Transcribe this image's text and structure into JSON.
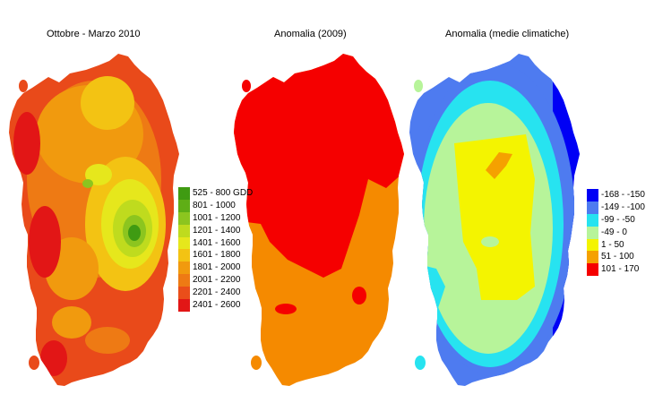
{
  "maps": [
    {
      "title": "Ottobre - Marzo 2010",
      "legend": [
        {
          "label": "525 - 800 GDD",
          "color": "#3f9b12"
        },
        {
          "label": "801 - 1000",
          "color": "#5fae16"
        },
        {
          "label": "1001 - 1200",
          "color": "#8cc51f"
        },
        {
          "label": "1201 - 1400",
          "color": "#bfdb1e"
        },
        {
          "label": "1401 - 1600",
          "color": "#e6e71c"
        },
        {
          "label": "1601 - 1800",
          "color": "#f3c313"
        },
        {
          "label": "1801 - 2000",
          "color": "#f19a0e"
        },
        {
          "label": "2001 - 2200",
          "color": "#ee7a14"
        },
        {
          "label": "2201 - 2400",
          "color": "#ea4e1a"
        },
        {
          "label": "2401 - 2600",
          "color": "#e21616"
        }
      ]
    },
    {
      "title": "Anomalia (2009)",
      "legend": []
    },
    {
      "title": "Anomalia (medie climatiche)",
      "legend": [
        {
          "label": "-168 - -150",
          "color": "#0000f5"
        },
        {
          "label": "-149 - -100",
          "color": "#4e7bf0"
        },
        {
          "label": "-99 - -50",
          "color": "#27e3f0"
        },
        {
          "label": "-49 - 0",
          "color": "#b7f49a"
        },
        {
          "label": "1 - 50",
          "color": "#f4f400"
        },
        {
          "label": "51 - 100",
          "color": "#f5a100"
        },
        {
          "label": "101 - 170",
          "color": "#f50000"
        }
      ]
    }
  ],
  "colors": {
    "anomaly_2009_north": "#f50000",
    "anomaly_2009_south": "#f58a00"
  }
}
